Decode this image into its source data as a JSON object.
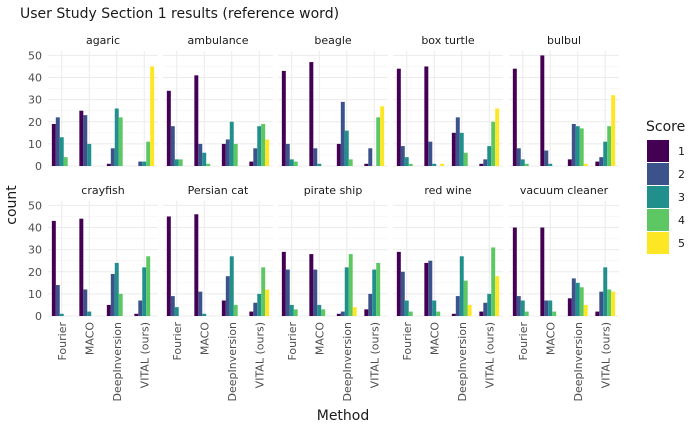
{
  "chart_data": {
    "type": "bar",
    "title": "User Study Section 1 results (reference word)",
    "xlabel": "Method",
    "ylabel": "count",
    "ylim": [
      0,
      52
    ],
    "yticks": [
      0,
      10,
      20,
      30,
      40,
      50
    ],
    "methods": [
      "Fourier",
      "MACO",
      "DeepInversion",
      "VITAL (ours)"
    ],
    "legend": {
      "title": "Score",
      "position": "right",
      "items": [
        {
          "label": "1",
          "color": "#440154"
        },
        {
          "label": "2",
          "color": "#3b528b"
        },
        {
          "label": "3",
          "color": "#21908c"
        },
        {
          "label": "4",
          "color": "#5dc863"
        },
        {
          "label": "5",
          "color": "#fde725"
        }
      ]
    },
    "grid": true,
    "facets": [
      {
        "name": "agaric",
        "values": [
          [
            19,
            22,
            13,
            4,
            0
          ],
          [
            25,
            23,
            10,
            0,
            0
          ],
          [
            1,
            8,
            26,
            22,
            0
          ],
          [
            0,
            2,
            2,
            11,
            45
          ]
        ]
      },
      {
        "name": "ambulance",
        "values": [
          [
            34,
            18,
            3,
            3,
            0
          ],
          [
            41,
            10,
            6,
            1,
            0
          ],
          [
            10,
            12,
            20,
            10,
            0
          ],
          [
            2,
            8,
            18,
            19,
            12
          ]
        ]
      },
      {
        "name": "beagle",
        "values": [
          [
            43,
            10,
            3,
            2,
            0
          ],
          [
            47,
            8,
            1,
            0,
            0
          ],
          [
            10,
            29,
            16,
            3,
            0
          ],
          [
            1,
            8,
            0,
            22,
            27
          ]
        ]
      },
      {
        "name": "box turtle",
        "values": [
          [
            44,
            9,
            4,
            1,
            0
          ],
          [
            45,
            11,
            1,
            0,
            1
          ],
          [
            15,
            22,
            15,
            6,
            0
          ],
          [
            1,
            3,
            9,
            20,
            26
          ]
        ]
      },
      {
        "name": "bulbul",
        "values": [
          [
            44,
            8,
            3,
            1,
            0
          ],
          [
            50,
            7,
            1,
            0,
            0
          ],
          [
            3,
            19,
            18,
            17,
            1
          ],
          [
            2,
            4,
            11,
            18,
            32
          ]
        ]
      },
      {
        "name": "crayfish",
        "values": [
          [
            43,
            14,
            1,
            0,
            0
          ],
          [
            44,
            12,
            2,
            0,
            0
          ],
          [
            5,
            19,
            24,
            10,
            0
          ],
          [
            1,
            7,
            22,
            27,
            0
          ]
        ]
      },
      {
        "name": "Persian cat",
        "values": [
          [
            45,
            9,
            4,
            0,
            0
          ],
          [
            46,
            11,
            1,
            0,
            0
          ],
          [
            7,
            18,
            27,
            5,
            0
          ],
          [
            2,
            6,
            10,
            22,
            12
          ]
        ]
      },
      {
        "name": "pirate ship",
        "values": [
          [
            29,
            21,
            5,
            3,
            0
          ],
          [
            28,
            21,
            5,
            3,
            0
          ],
          [
            1,
            2,
            22,
            28,
            4
          ],
          [
            3,
            10,
            21,
            24,
            0
          ]
        ]
      },
      {
        "name": "red wine",
        "values": [
          [
            29,
            20,
            7,
            2,
            0
          ],
          [
            24,
            25,
            7,
            2,
            0
          ],
          [
            1,
            9,
            27,
            16,
            5
          ],
          [
            2,
            6,
            10,
            31,
            18
          ]
        ]
      },
      {
        "name": "vacuum cleaner",
        "values": [
          [
            40,
            9,
            7,
            2,
            0
          ],
          [
            40,
            7,
            7,
            2,
            0
          ],
          [
            8,
            17,
            15,
            13,
            5
          ],
          [
            2,
            11,
            22,
            12,
            11
          ]
        ]
      }
    ]
  }
}
